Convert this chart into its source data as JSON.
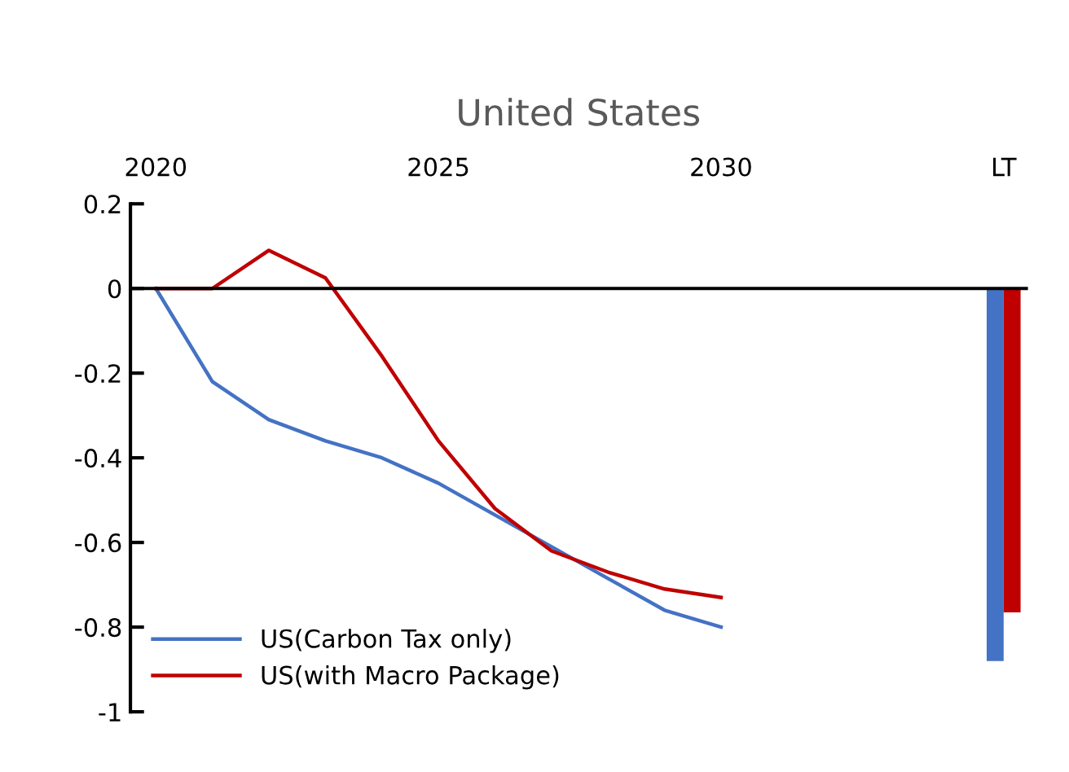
{
  "chart_data": {
    "type": "line",
    "title": "United States",
    "categories": [
      "2020",
      null,
      null,
      null,
      null,
      "2025",
      null,
      null,
      null,
      null,
      "2030",
      null,
      null,
      null,
      null,
      "LT"
    ],
    "series": [
      {
        "name": "US(Carbon Tax only)",
        "color": "#4472c4",
        "values": [
          0,
          -0.22,
          -0.31,
          -0.36,
          -0.4,
          -0.46,
          -0.535,
          -0.61,
          -0.685,
          -0.76,
          -0.8,
          null,
          null,
          null,
          null,
          null
        ]
      },
      {
        "name": "US(with Macro Package)",
        "color": "#c00000",
        "values": [
          0,
          0,
          0.09,
          0.025,
          -0.16,
          -0.36,
          -0.52,
          -0.62,
          -0.67,
          -0.71,
          -0.73,
          null,
          null,
          null,
          null,
          null
        ]
      },
      {
        "type": "bar",
        "color": "#4472c4",
        "values": [
          null,
          null,
          null,
          null,
          null,
          null,
          null,
          null,
          null,
          null,
          null,
          null,
          null,
          null,
          null,
          -0.88
        ]
      },
      {
        "type": "bar",
        "color": "#c00000",
        "values": [
          null,
          null,
          null,
          null,
          null,
          null,
          null,
          null,
          null,
          null,
          null,
          null,
          null,
          null,
          null,
          -0.765
        ]
      }
    ],
    "ylim": [
      -1,
      0.2
    ],
    "yticks": [
      {
        "value": 0.2,
        "label": "0.2"
      },
      0,
      {
        "value": -0.2,
        "label": "-0.2"
      },
      {
        "value": -0.4,
        "label": "-0.4"
      },
      {
        "value": -0.6,
        "label": "-0.6"
      },
      {
        "value": -0.8,
        "label": "-0.8"
      },
      {
        "value": -1,
        "label": "-1"
      }
    ],
    "legend": "bottom left"
  }
}
